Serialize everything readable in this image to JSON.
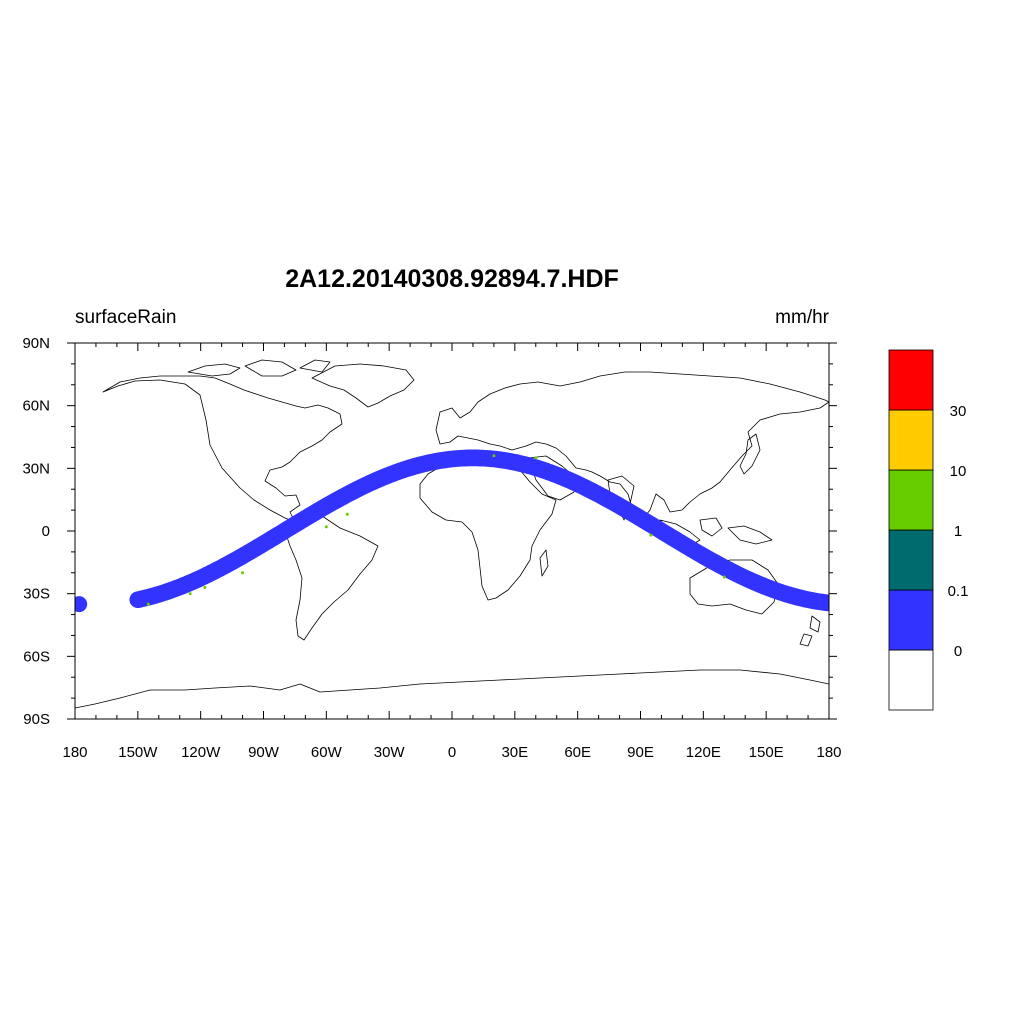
{
  "title": "2A12.20140308.92894.7.HDF",
  "left_label": "surfaceRain",
  "right_label": "mm/hr",
  "x_ticks": [
    {
      "lon": -180,
      "label": "180"
    },
    {
      "lon": -150,
      "label": "150W"
    },
    {
      "lon": -120,
      "label": "120W"
    },
    {
      "lon": -90,
      "label": "90W"
    },
    {
      "lon": -60,
      "label": "60W"
    },
    {
      "lon": -30,
      "label": "30W"
    },
    {
      "lon": 0,
      "label": "0"
    },
    {
      "lon": 30,
      "label": "30E"
    },
    {
      "lon": 60,
      "label": "60E"
    },
    {
      "lon": 90,
      "label": "90E"
    },
    {
      "lon": 120,
      "label": "120E"
    },
    {
      "lon": 150,
      "label": "150E"
    },
    {
      "lon": 180,
      "label": "180"
    }
  ],
  "y_ticks": [
    {
      "lat": 90,
      "label": "90N"
    },
    {
      "lat": 60,
      "label": "60N"
    },
    {
      "lat": 30,
      "label": "30N"
    },
    {
      "lat": 0,
      "label": "0"
    },
    {
      "lat": -30,
      "label": "30S"
    },
    {
      "lat": -60,
      "label": "60S"
    },
    {
      "lat": -90,
      "label": "90S"
    }
  ],
  "colorbar": {
    "colors": [
      "#ffffff",
      "#3333ff",
      "#006b6e",
      "#66cc00",
      "#ffcc00",
      "#ff0000"
    ],
    "labels": [
      "0",
      "0.1",
      "1",
      "10",
      "30"
    ]
  },
  "swath": {
    "color": "#3333ff",
    "start_lon": -150,
    "end_lon": 180,
    "crest_lon": 10,
    "amplitude_lat": 35,
    "width_deg": 8,
    "fragment_lon": -178,
    "fragment_lat": -35
  },
  "rain_points": [
    {
      "lon": -145,
      "lat": -35
    },
    {
      "lon": -125,
      "lat": -30
    },
    {
      "lon": -118,
      "lat": -27
    },
    {
      "lon": -100,
      "lat": -20
    },
    {
      "lon": -60,
      "lat": 2
    },
    {
      "lon": -50,
      "lat": 8
    },
    {
      "lon": 20,
      "lat": 36
    },
    {
      "lon": 40,
      "lat": 35
    },
    {
      "lon": 95,
      "lat": -2
    },
    {
      "lon": 130,
      "lat": -22
    }
  ],
  "rain_color": "#66cc00"
}
